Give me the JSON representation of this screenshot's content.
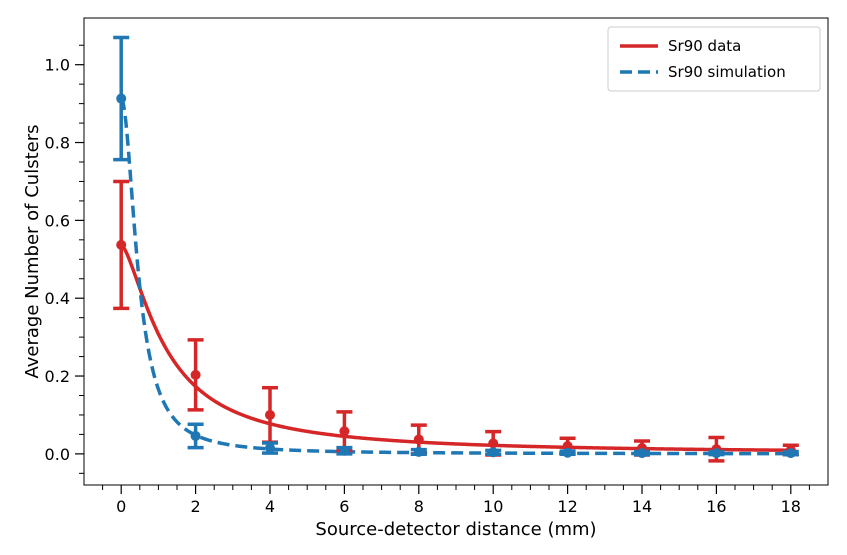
{
  "chart_data": {
    "type": "line",
    "title": "",
    "xlabel": "Source-detector distance (mm)",
    "ylabel": "Average Number of Culsters",
    "xlim": [
      -1,
      19
    ],
    "ylim": [
      -0.08,
      1.12
    ],
    "xticks": [
      0,
      2,
      4,
      6,
      8,
      10,
      12,
      14,
      16,
      18
    ],
    "xtick_labels": [
      "0",
      "2",
      "4",
      "6",
      "8",
      "10",
      "12",
      "14",
      "16",
      "18"
    ],
    "yticks": [
      0.0,
      0.2,
      0.4,
      0.6,
      0.8,
      1.0
    ],
    "ytick_labels": [
      "0.0",
      "0.2",
      "0.4",
      "0.6",
      "0.8",
      "1.0"
    ],
    "legend_position": "top-right",
    "series": [
      {
        "name": "Sr90 data",
        "color": "#d62728",
        "style": "solid",
        "points": [
          {
            "x": 0,
            "y": 0.537,
            "err": 0.163
          },
          {
            "x": 2,
            "y": 0.203,
            "err": 0.09
          },
          {
            "x": 4,
            "y": 0.1,
            "err": 0.07
          },
          {
            "x": 6,
            "y": 0.058,
            "err": 0.05
          },
          {
            "x": 8,
            "y": 0.037,
            "err": 0.037
          },
          {
            "x": 10,
            "y": 0.027,
            "err": 0.03
          },
          {
            "x": 12,
            "y": 0.02,
            "err": 0.02
          },
          {
            "x": 14,
            "y": 0.015,
            "err": 0.018
          },
          {
            "x": 16,
            "y": 0.012,
            "err": 0.03
          },
          {
            "x": 18,
            "y": 0.01,
            "err": 0.012
          }
        ],
        "fit": {
          "model": "a / (1 + b*x^c)",
          "a": 0.537,
          "b": 0.743,
          "c": 1.5
        }
      },
      {
        "name": "Sr90 simulation",
        "color": "#1f77b4",
        "style": "dashed",
        "points": [
          {
            "x": 0,
            "y": 0.913,
            "err": 0.157
          },
          {
            "x": 2,
            "y": 0.046,
            "err": 0.03
          },
          {
            "x": 4,
            "y": 0.015,
            "err": 0.013
          },
          {
            "x": 6,
            "y": 0.008,
            "err": 0.008
          },
          {
            "x": 8,
            "y": 0.005,
            "err": 0.006
          },
          {
            "x": 10,
            "y": 0.004,
            "err": 0.005
          },
          {
            "x": 12,
            "y": 0.003,
            "err": 0.004
          },
          {
            "x": 14,
            "y": 0.002,
            "err": 0.004
          },
          {
            "x": 16,
            "y": 0.002,
            "err": 0.004
          },
          {
            "x": 18,
            "y": 0.002,
            "err": 0.004
          }
        ],
        "fit": {
          "model": "a / (1 + b*x^c)",
          "a": 0.913,
          "b": 4.5,
          "c": 2.0
        }
      }
    ]
  }
}
